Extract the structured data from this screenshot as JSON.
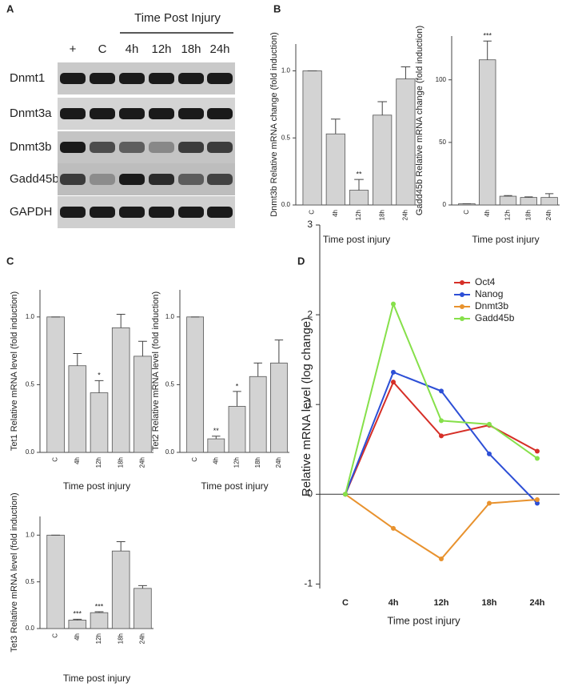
{
  "panel_labels": [
    "A",
    "B",
    "C",
    "D"
  ],
  "gel": {
    "header": "Time Post Injury",
    "lanes": [
      "+",
      "C",
      "4h",
      "12h",
      "18h",
      "24h"
    ],
    "rows": [
      "Dnmt1",
      "Dnmt3a",
      "Dnmt3b",
      "Gadd45b",
      "GAPDH"
    ]
  },
  "chart_data": [
    {
      "type": "bar",
      "ylabel": "Dnmt3b Relative mRNA change (fold induction)",
      "xlabel": "Time post injury",
      "categories": [
        "C",
        "4h",
        "12h",
        "18h",
        "24h"
      ],
      "values": [
        1.0,
        0.53,
        0.11,
        0.67,
        0.94
      ],
      "errors": [
        0,
        0.11,
        0.08,
        0.1,
        0.09
      ],
      "annotations": [
        {
          "x": "12h",
          "text": "**"
        }
      ],
      "color": "#d3d3d3",
      "ylim": [
        0,
        1.2
      ],
      "yticks": [
        {
          "value": 0,
          "label": "0.0"
        },
        {
          "value": 0.5,
          "label": "0.5"
        },
        {
          "value": 1,
          "label": "1.0"
        }
      ]
    },
    {
      "type": "bar",
      "ylabel": "Gadd45b Relative mRNA change (fold induction)",
      "xlabel": "Time post injury",
      "categories": [
        "C",
        "4h",
        "12h",
        "18h",
        "24h"
      ],
      "values": [
        1,
        116,
        7,
        6,
        6
      ],
      "errors": [
        0,
        15,
        0.5,
        0.5,
        3
      ],
      "annotations": [
        {
          "x": "4h",
          "text": "***"
        }
      ],
      "color": "#d3d3d3",
      "ylim": [
        0,
        135
      ],
      "yticks": [
        0,
        50,
        100
      ]
    },
    {
      "type": "bar",
      "ylabel": "Tet1 Relative mRNA level (fold induction)",
      "xlabel": "Time post injury",
      "categories": [
        "C",
        "4h",
        "12h",
        "18h",
        "24h"
      ],
      "values": [
        1.0,
        0.64,
        0.44,
        0.92,
        0.71
      ],
      "errors": [
        0,
        0.09,
        0.09,
        0.1,
        0.11
      ],
      "annotations": [
        {
          "x": "12h",
          "text": "*"
        }
      ],
      "color": "#d3d3d3",
      "ylim": [
        0,
        1.2
      ],
      "yticks": [
        {
          "value": 0,
          "label": "0.0"
        },
        {
          "value": 0.5,
          "label": "0.5"
        },
        {
          "value": 1,
          "label": "1.0"
        }
      ]
    },
    {
      "type": "bar",
      "ylabel": "Tet2 Relative mRNA level (fold induction)",
      "xlabel": "Time post injury",
      "categories": [
        "C",
        "4h",
        "12h",
        "18h",
        "24h"
      ],
      "values": [
        1.0,
        0.1,
        0.34,
        0.56,
        0.66
      ],
      "errors": [
        0,
        0.02,
        0.11,
        0.1,
        0.17
      ],
      "annotations": [
        {
          "x": "4h",
          "text": "**"
        },
        {
          "x": "12h",
          "text": "*"
        }
      ],
      "color": "#d3d3d3",
      "ylim": [
        0,
        1.2
      ],
      "yticks": [
        {
          "value": 0,
          "label": "0.0"
        },
        {
          "value": 0.5,
          "label": "0.5"
        },
        {
          "value": 1,
          "label": "1.0"
        }
      ]
    },
    {
      "type": "bar",
      "ylabel": "Tet3 Relative mRNA level (fold induction)",
      "xlabel": "Time post injury",
      "categories": [
        "C",
        "4h",
        "12h",
        "18h",
        "24h"
      ],
      "values": [
        1.0,
        0.09,
        0.17,
        0.83,
        0.43
      ],
      "errors": [
        0,
        0.01,
        0.01,
        0.1,
        0.03
      ],
      "annotations": [
        {
          "x": "4h",
          "text": "***"
        },
        {
          "x": "12h",
          "text": "***"
        }
      ],
      "color": "#d3d3d3",
      "ylim": [
        0,
        1.2
      ],
      "yticks": [
        {
          "value": 0,
          "label": "0.0"
        },
        {
          "value": 0.5,
          "label": "0.5"
        },
        {
          "value": 1,
          "label": "1.0"
        }
      ]
    },
    {
      "type": "line",
      "ylabel": "Relative mRNA level (log change)",
      "xlabel": "Time post injury",
      "categories": [
        "C",
        "4h",
        "12h",
        "18h",
        "24h"
      ],
      "series": [
        {
          "name": "Oct4",
          "color": "#d62f27",
          "values": [
            0,
            1.25,
            0.65,
            0.77,
            0.48
          ]
        },
        {
          "name": "Nanog",
          "color": "#2d4fd6",
          "values": [
            0,
            1.36,
            1.15,
            0.45,
            -0.1
          ]
        },
        {
          "name": "Dnmt3b",
          "color": "#e8922e",
          "values": [
            0,
            -0.38,
            -0.72,
            -0.1,
            -0.06
          ]
        },
        {
          "name": "Gadd45b",
          "color": "#86e04a",
          "values": [
            0,
            2.12,
            0.82,
            0.78,
            0.4
          ]
        }
      ],
      "ylim": [
        -1.05,
        3
      ],
      "yticks": [
        -1,
        0,
        1,
        2,
        3
      ],
      "legend": "upper right"
    }
  ]
}
